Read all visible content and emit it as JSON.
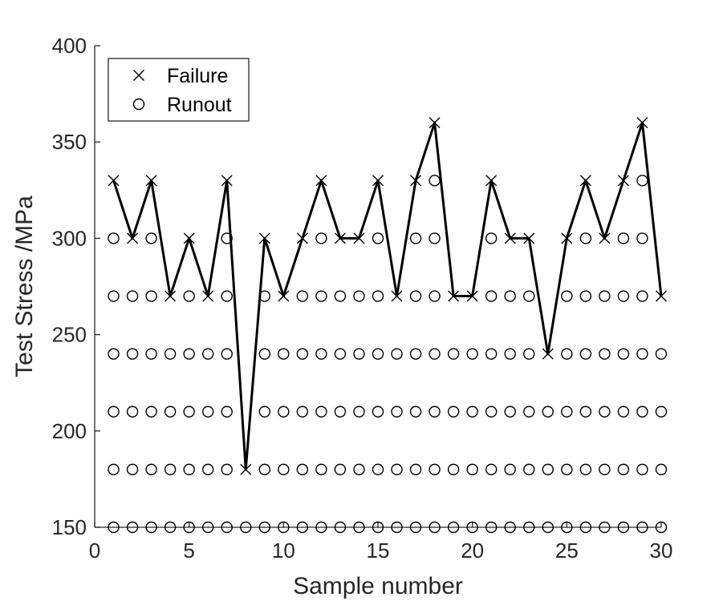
{
  "chart_data": {
    "type": "scatter",
    "title": "",
    "xlabel": "Sample number",
    "ylabel": "Test Stress /MPa",
    "xlim": [
      0,
      30
    ],
    "ylim": [
      150,
      400
    ],
    "xticks": [
      0,
      5,
      10,
      15,
      20,
      25,
      30
    ],
    "yticks": [
      150,
      200,
      250,
      300,
      350,
      400
    ],
    "grid": false,
    "legend_position": "top-left",
    "line_color": "#000000",
    "series": [
      {
        "name": "Failure",
        "marker": "x",
        "connected": true,
        "x": [
          1,
          2,
          3,
          4,
          5,
          6,
          7,
          8,
          9,
          10,
          11,
          12,
          13,
          14,
          15,
          16,
          17,
          18,
          19,
          20,
          21,
          22,
          23,
          24,
          25,
          26,
          27,
          28,
          29,
          30
        ],
        "y": [
          330,
          300,
          330,
          270,
          300,
          270,
          330,
          180,
          300,
          270,
          300,
          330,
          300,
          300,
          330,
          270,
          330,
          360,
          270,
          270,
          330,
          300,
          300,
          240,
          300,
          330,
          300,
          330,
          360,
          270
        ]
      },
      {
        "name": "Runout",
        "marker": "o",
        "connected": false,
        "x": [
          1,
          1,
          1,
          1,
          1,
          1,
          2,
          2,
          2,
          2,
          2,
          3,
          3,
          3,
          3,
          3,
          3,
          4,
          4,
          4,
          4,
          5,
          5,
          5,
          5,
          5,
          6,
          6,
          6,
          6,
          7,
          7,
          7,
          7,
          7,
          7,
          8,
          9,
          9,
          9,
          9,
          9,
          10,
          10,
          10,
          10,
          11,
          11,
          11,
          11,
          11,
          12,
          12,
          12,
          12,
          12,
          12,
          13,
          13,
          13,
          13,
          13,
          14,
          14,
          14,
          14,
          14,
          15,
          15,
          15,
          15,
          15,
          15,
          16,
          16,
          16,
          16,
          17,
          17,
          17,
          17,
          17,
          17,
          18,
          18,
          18,
          18,
          18,
          18,
          18,
          19,
          19,
          19,
          19,
          20,
          20,
          20,
          20,
          21,
          21,
          21,
          21,
          21,
          21,
          22,
          22,
          22,
          22,
          22,
          23,
          23,
          23,
          23,
          23,
          24,
          24,
          24,
          25,
          25,
          25,
          25,
          25,
          26,
          26,
          26,
          26,
          26,
          26,
          27,
          27,
          27,
          27,
          27,
          28,
          28,
          28,
          28,
          28,
          28,
          29,
          29,
          29,
          29,
          29,
          29,
          29,
          30,
          30,
          30,
          30
        ],
        "y": [
          150,
          180,
          210,
          240,
          270,
          300,
          150,
          180,
          210,
          240,
          270,
          150,
          180,
          210,
          240,
          270,
          300,
          150,
          180,
          210,
          240,
          150,
          180,
          210,
          240,
          270,
          150,
          180,
          210,
          240,
          150,
          180,
          210,
          240,
          270,
          300,
          150,
          150,
          180,
          210,
          240,
          270,
          150,
          180,
          210,
          240,
          150,
          180,
          210,
          240,
          270,
          150,
          180,
          210,
          240,
          270,
          300,
          150,
          180,
          210,
          240,
          270,
          150,
          180,
          210,
          240,
          270,
          150,
          180,
          210,
          240,
          270,
          300,
          150,
          180,
          210,
          240,
          150,
          180,
          210,
          240,
          270,
          300,
          150,
          180,
          210,
          240,
          270,
          300,
          330,
          150,
          180,
          210,
          240,
          150,
          180,
          210,
          240,
          150,
          180,
          210,
          240,
          270,
          300,
          150,
          180,
          210,
          240,
          270,
          150,
          180,
          210,
          240,
          270,
          150,
          180,
          210,
          150,
          180,
          210,
          240,
          270,
          150,
          180,
          210,
          240,
          270,
          300,
          150,
          180,
          210,
          240,
          270,
          150,
          180,
          210,
          240,
          270,
          300,
          150,
          180,
          210,
          240,
          270,
          300,
          330,
          150,
          180,
          210,
          240
        ]
      }
    ]
  }
}
